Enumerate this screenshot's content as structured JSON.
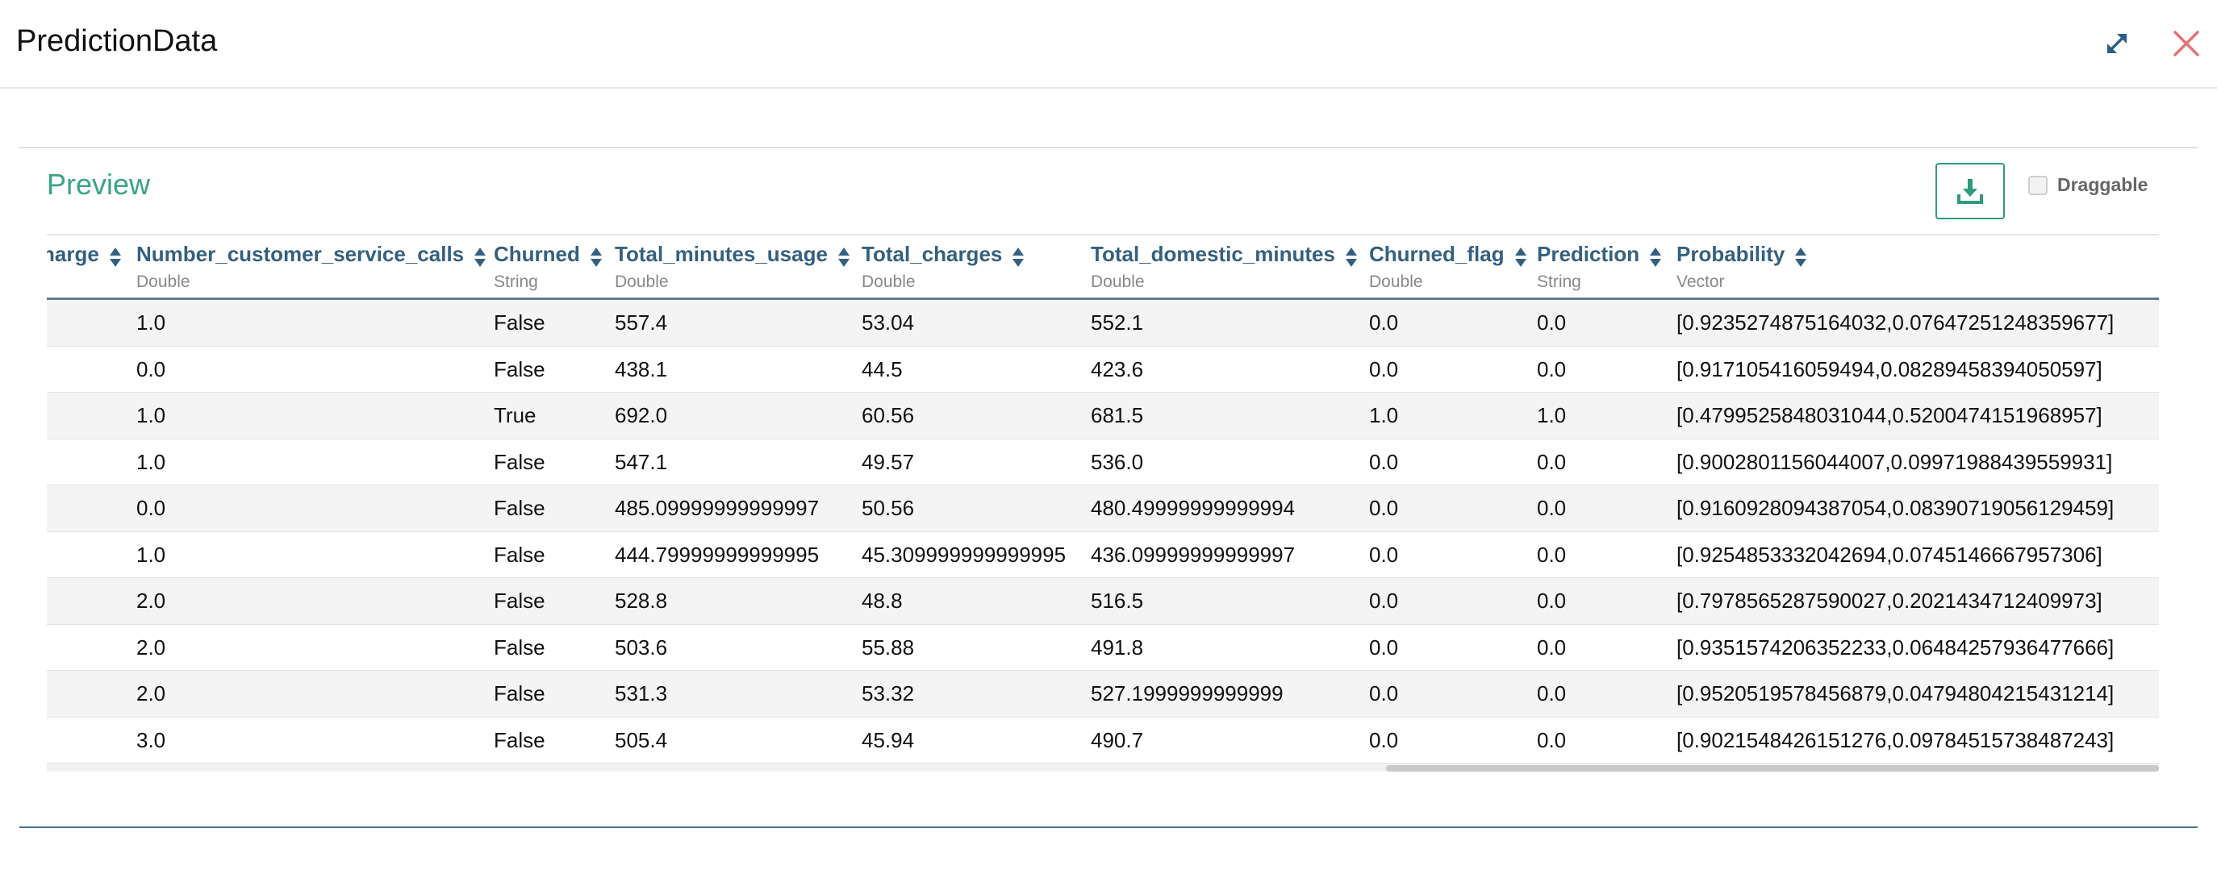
{
  "dialog": {
    "title": "PredictionData"
  },
  "section": {
    "title": "Preview",
    "draggable_label": "Draggable"
  },
  "icons": {
    "expand": "expand-arrows-icon",
    "close": "close-x-icon",
    "download": "download-tray-icon"
  },
  "colors": {
    "accent": "#3aa387",
    "header_text": "#34607f",
    "close": "#e57373",
    "header_rule": "#5a7d96"
  },
  "table": {
    "columns": [
      {
        "name": "harge",
        "type": ""
      },
      {
        "name": "Number_customer_service_calls",
        "type": "Double"
      },
      {
        "name": "Churned",
        "type": "String"
      },
      {
        "name": "Total_minutes_usage",
        "type": "Double"
      },
      {
        "name": "Total_charges",
        "type": "Double"
      },
      {
        "name": "Total_domestic_minutes",
        "type": "Double"
      },
      {
        "name": "Churned_flag",
        "type": "Double"
      },
      {
        "name": "Prediction",
        "type": "String"
      },
      {
        "name": "Probability",
        "type": "Vector"
      }
    ],
    "rows": [
      [
        "",
        "1.0",
        "False",
        "557.4",
        "53.04",
        "552.1",
        "0.0",
        "0.0",
        "[0.9235274875164032,0.07647251248359677]"
      ],
      [
        "",
        "0.0",
        "False",
        "438.1",
        "44.5",
        "423.6",
        "0.0",
        "0.0",
        "[0.917105416059494,0.08289458394050597]"
      ],
      [
        "",
        "1.0",
        "True",
        "692.0",
        "60.56",
        "681.5",
        "1.0",
        "1.0",
        "[0.4799525848031044,0.5200474151968957]"
      ],
      [
        "",
        "1.0",
        "False",
        "547.1",
        "49.57",
        "536.0",
        "0.0",
        "0.0",
        "[0.9002801156044007,0.09971988439559931]"
      ],
      [
        "",
        "0.0",
        "False",
        "485.09999999999997",
        "50.56",
        "480.49999999999994",
        "0.0",
        "0.0",
        "[0.9160928094387054,0.08390719056129459]"
      ],
      [
        "",
        "1.0",
        "False",
        "444.79999999999995",
        "45.309999999999995",
        "436.09999999999997",
        "0.0",
        "0.0",
        "[0.9254853332042694,0.0745146667957306]"
      ],
      [
        "",
        "2.0",
        "False",
        "528.8",
        "48.8",
        "516.5",
        "0.0",
        "0.0",
        "[0.7978565287590027,0.2021434712409973]"
      ],
      [
        "",
        "2.0",
        "False",
        "503.6",
        "55.88",
        "491.8",
        "0.0",
        "0.0",
        "[0.9351574206352233,0.06484257936477666]"
      ],
      [
        "",
        "2.0",
        "False",
        "531.3",
        "53.32",
        "527.1999999999999",
        "0.0",
        "0.0",
        "[0.9520519578456879,0.04794804215431214]"
      ],
      [
        "",
        "3.0",
        "False",
        "505.4",
        "45.94",
        "490.7",
        "0.0",
        "0.0",
        "[0.9021548426151276,0.09784515738487243]"
      ]
    ]
  }
}
